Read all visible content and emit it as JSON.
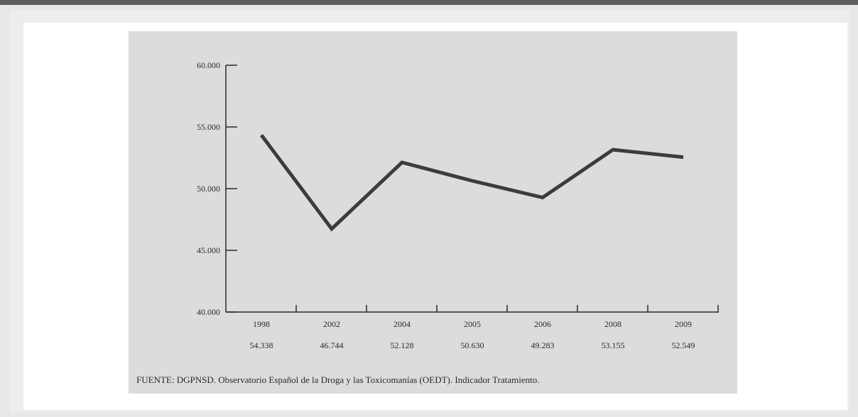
{
  "chart_data": {
    "type": "line",
    "categories": [
      "1998",
      "2002",
      "2004",
      "2005",
      "2006",
      "2008",
      "2009"
    ],
    "value_labels": [
      "54.338",
      "46.744",
      "52.128",
      "50.630",
      "49.283",
      "53.155",
      "52.549"
    ],
    "values": [
      54338,
      46744,
      52128,
      50630,
      49283,
      53155,
      52549
    ],
    "yticks": [
      "40.000",
      "45.000",
      "50.000",
      "55.000",
      "60.000"
    ],
    "ytick_values": [
      40000,
      45000,
      50000,
      55000,
      60000
    ],
    "ylim": [
      40000,
      60000
    ],
    "grid": false,
    "line_color": "#3c3c3c"
  },
  "source": "FUENTE: DGPNSD. Observatorio Español de la Droga y las Toxicomanías (OEDT). Indicador Tratamiento."
}
